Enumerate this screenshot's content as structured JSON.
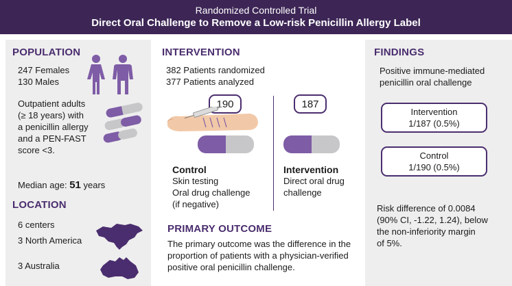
{
  "header": {
    "subtitle": "Randomized Controlled Trial",
    "title": "Direct Oral Challenge to Remove a Low-risk Penicillin Allergy Label"
  },
  "population": {
    "heading": "POPULATION",
    "females": "247 Females",
    "males": "130 Males",
    "criteria": [
      "Outpatient adults",
      "(≥ 18 years) with",
      "a penicillin allergy",
      "and a PEN-FAST",
      "score <3."
    ],
    "median_age_label": "Median age:",
    "median_age_value": "51",
    "median_age_unit": "years"
  },
  "location": {
    "heading": "LOCATION",
    "centers": "6 centers",
    "north_america": "3 North America",
    "australia": "3 Australia"
  },
  "intervention": {
    "heading": "INTERVENTION",
    "randomized": "382 Patients randomized",
    "analyzed": "377 Patients analyzed",
    "control_n": "190",
    "intervention_n": "187",
    "control_title": "Control",
    "control_lines": [
      "Skin testing",
      "Oral drug challenge",
      "(if negative)"
    ],
    "intervention_title": "Intervention",
    "intervention_lines": [
      "Direct oral drug",
      "challenge"
    ]
  },
  "primary_outcome": {
    "heading": "PRIMARY OUTCOME",
    "lines": [
      "The primary outcome was the difference in the",
      "proportion of patients with a physician-verified",
      "positive oral penicillin challenge."
    ]
  },
  "findings": {
    "heading": "FINDINGS",
    "intro": [
      "Positive immune-mediated",
      "penicillin oral challenge"
    ],
    "intervention_label": "Intervention",
    "intervention_value": "1/187 (0.5%)",
    "control_label": "Control",
    "control_value": "1/190 (0.5%)",
    "risk_lines": [
      "Risk difference of 0.0084",
      "(90% CI, -1.22, 1.24), below",
      "the non-inferiority margin",
      "of 5%."
    ]
  },
  "colors": {
    "header_bg": "#3d2656",
    "accent": "#4a2d6e",
    "pill_purple": "#7e5ca6",
    "pill_grey": "#c7c7c9",
    "panel_bg": "#eeeeee"
  }
}
